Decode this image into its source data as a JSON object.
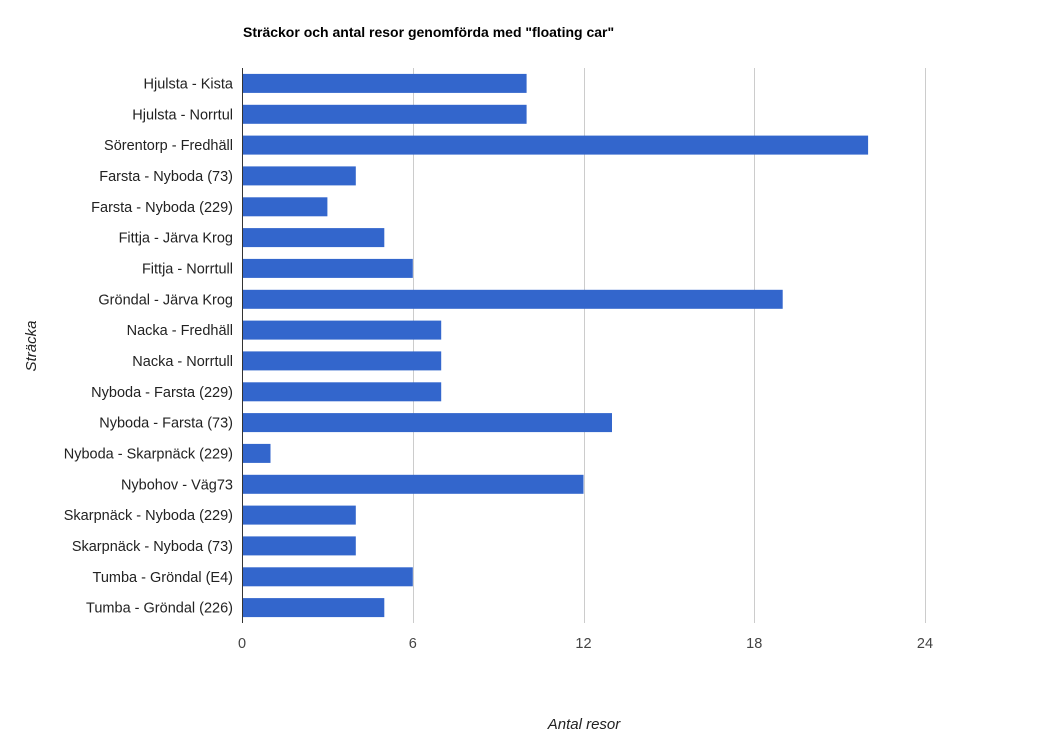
{
  "chart_data": {
    "type": "bar",
    "orientation": "horizontal",
    "title": "Sträckor och antal resor genomförda med \"floating car\"",
    "xlabel": "Antal resor",
    "ylabel": "Sträcka",
    "xlim": [
      0,
      28
    ],
    "xticks": [
      "0",
      "6",
      "12",
      "18",
      "24"
    ],
    "xtick_values": [
      0,
      6,
      12,
      18,
      24
    ],
    "grid": true,
    "legend": "none",
    "bar_color": "#3366cc",
    "categories": [
      "Hjulsta - Kista",
      "Hjulsta - Norrtul",
      "Sörentorp - Fredhäll",
      "Farsta - Nyboda (73)",
      "Farsta - Nyboda (229)",
      "Fittja - Järva Krog",
      "Fittja - Norrtull",
      "Gröndal - Järva Krog",
      "Nacka - Fredhäll",
      "Nacka - Norrtull",
      "Nyboda - Farsta (229)",
      "Nyboda - Farsta (73)",
      "Nyboda - Skarpnäck (229)",
      "Nybohov - Väg73",
      "Skarpnäck - Nyboda (229)",
      "Skarpnäck - Nyboda (73)",
      "Tumba - Gröndal (E4)",
      "Tumba - Gröndal (226)"
    ],
    "values": [
      10,
      10,
      22,
      4,
      3,
      5,
      6,
      19,
      7,
      7,
      7,
      13,
      1,
      12,
      4,
      4,
      6,
      5
    ]
  }
}
